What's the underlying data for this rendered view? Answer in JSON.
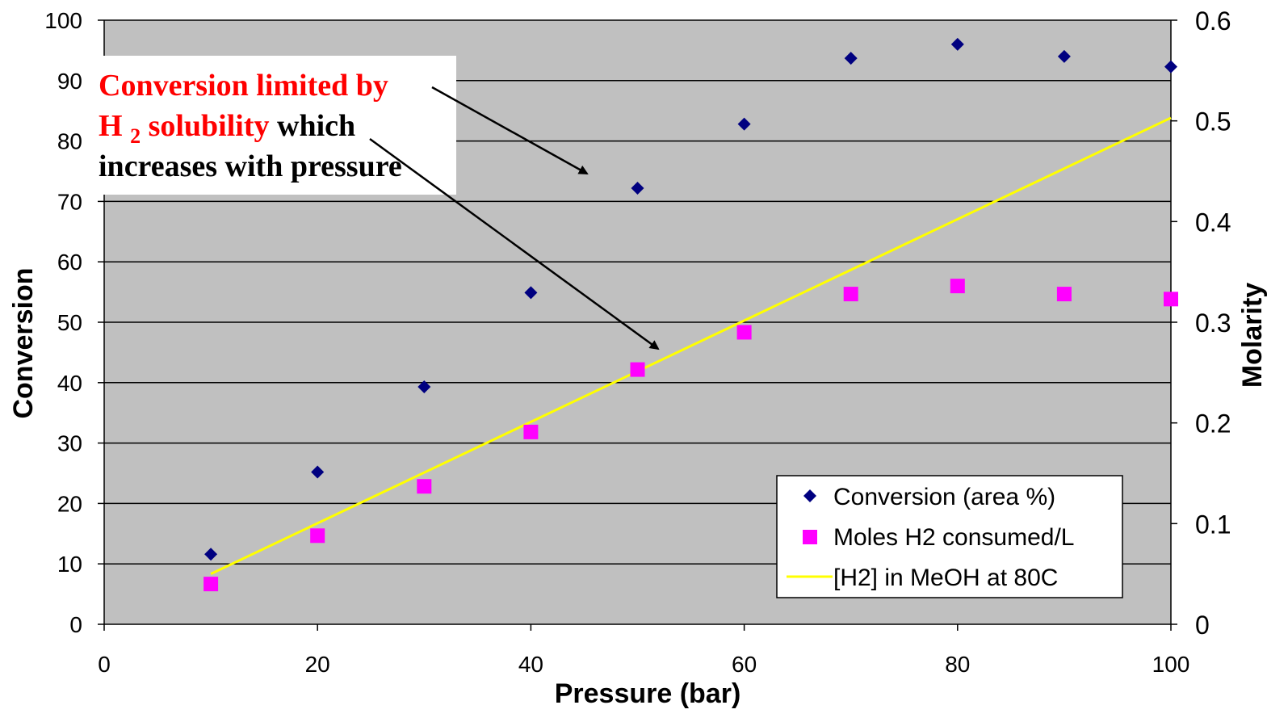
{
  "chart_data": {
    "type": "scatter",
    "x_axis": {
      "label": "Pressure (bar)",
      "range": [
        0,
        100
      ],
      "ticks": [
        "0",
        "20",
        "40",
        "60",
        "80",
        "100"
      ]
    },
    "y_axis_left": {
      "label": "Conversion",
      "range": [
        0,
        100
      ],
      "ticks": [
        "0",
        "10",
        "20",
        "30",
        "40",
        "50",
        "60",
        "70",
        "80",
        "90",
        "100"
      ]
    },
    "y_axis_right": {
      "label": "Molarity",
      "range": [
        0,
        0.6
      ],
      "ticks": [
        "0",
        "0.1",
        "0.2",
        "0.3",
        "0.4",
        "0.5",
        "0.6"
      ]
    },
    "grid": "horizontal",
    "plot_background": "#c0c0c0",
    "legend_position": "bottom-right",
    "series": [
      {
        "name": "Conversion (area %)",
        "kind": "scatter",
        "marker": "diamond",
        "color": "#000080",
        "axis": "left",
        "points": [
          {
            "x": 10,
            "y": 11.6
          },
          {
            "x": 20,
            "y": 25.2
          },
          {
            "x": 30,
            "y": 39.3
          },
          {
            "x": 40,
            "y": 54.9
          },
          {
            "x": 50,
            "y": 72.2
          },
          {
            "x": 60,
            "y": 82.8
          },
          {
            "x": 70,
            "y": 93.7
          },
          {
            "x": 80,
            "y": 96.0
          },
          {
            "x": 90,
            "y": 94.0
          },
          {
            "x": 100,
            "y": 92.3
          }
        ]
      },
      {
        "name": "Moles H2 consumed/L",
        "kind": "scatter",
        "marker": "square",
        "color": "#ff00ff",
        "axis": "right",
        "points": [
          {
            "x": 10,
            "y": 0.04
          },
          {
            "x": 20,
            "y": 0.088
          },
          {
            "x": 30,
            "y": 0.137
          },
          {
            "x": 40,
            "y": 0.191
          },
          {
            "x": 50,
            "y": 0.253
          },
          {
            "x": 60,
            "y": 0.29
          },
          {
            "x": 70,
            "y": 0.328
          },
          {
            "x": 80,
            "y": 0.336
          },
          {
            "x": 90,
            "y": 0.328
          },
          {
            "x": 100,
            "y": 0.323
          }
        ]
      },
      {
        "name": "[H2] in MeOH at 80C",
        "kind": "line",
        "color": "#ffff00",
        "axis": "right",
        "points": [
          {
            "x": 10,
            "y": 0.05
          },
          {
            "x": 100,
            "y": 0.503
          }
        ]
      }
    ],
    "annotation": {
      "line1_red": "Conversion limited by",
      "line2_red_main": "H",
      "line2_red_sub": "2",
      "line2_red_rest": " solubility",
      "line2_black": " which",
      "line3_black": "increases with pressure",
      "text_color_highlight": "#ff0000",
      "arrow_targets": [
        {
          "x": 45,
          "y": 74.6
        },
        {
          "x": 52.5,
          "y": 45.2
        }
      ]
    }
  }
}
